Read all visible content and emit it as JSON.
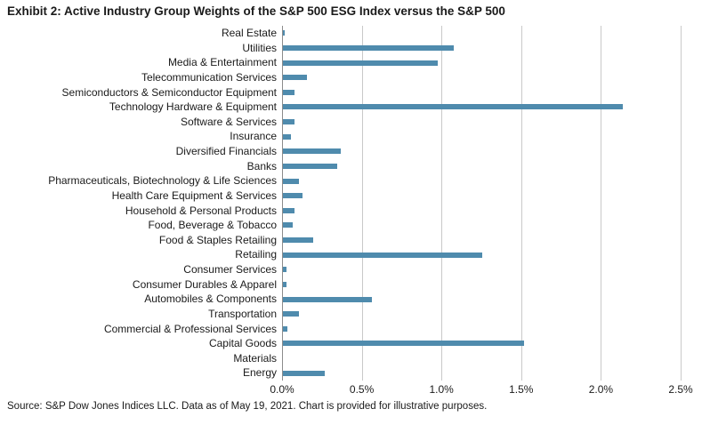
{
  "title": "Exhibit 2: Active Industry Group Weights of the S&P 500 ESG Index versus the S&P 500",
  "source": "Source: S&P Dow Jones Indices LLC. Data as of May 19, 2021. Chart is provided for illustrative purposes.",
  "colors": {
    "bar": "#4f8bad",
    "gridline": "#c9c9c9",
    "zero_axis": "#8c8c8c",
    "text": "#1a1a1a",
    "background": "#ffffff"
  },
  "chart_data": {
    "type": "bar",
    "orientation": "horizontal",
    "title": "Exhibit 2: Active Industry Group Weights of the S&P 500 ESG Index versus the S&P 500",
    "xlabel": "",
    "ylabel": "",
    "value_unit": "%",
    "xlim": [
      0,
      2.5
    ],
    "xticks": [
      "0.0%",
      "0.5%",
      "1.0%",
      "1.5%",
      "2.0%",
      "2.5%"
    ],
    "xtick_values": [
      0,
      0.5,
      1.0,
      1.5,
      2.0,
      2.5
    ],
    "grid": true,
    "legend": false,
    "categories": [
      "Real Estate",
      "Utilities",
      "Media & Entertainment",
      "Telecommunication Services",
      "Semiconductors & Semiconductor Equipment",
      "Technology Hardware & Equipment",
      "Software & Services",
      "Insurance",
      "Diversified Financials",
      "Banks",
      "Pharmaceuticals, Biotechnology & Life Sciences",
      "Health Care Equipment & Services",
      "Household & Personal Products",
      "Food, Beverage & Tobacco",
      "Food & Staples Retailing",
      "Retailing",
      "Consumer Services",
      "Consumer Durables & Apparel",
      "Automobiles & Components",
      "Transportation",
      "Commercial & Professional Services",
      "Capital Goods",
      "Materials",
      "Energy"
    ],
    "values": [
      0.01,
      1.07,
      0.97,
      0.15,
      0.07,
      2.13,
      0.07,
      0.05,
      0.36,
      0.34,
      0.1,
      0.12,
      0.07,
      0.06,
      0.19,
      1.25,
      0.02,
      0.02,
      0.56,
      0.1,
      0.03,
      1.51,
      0.0,
      0.26
    ]
  }
}
